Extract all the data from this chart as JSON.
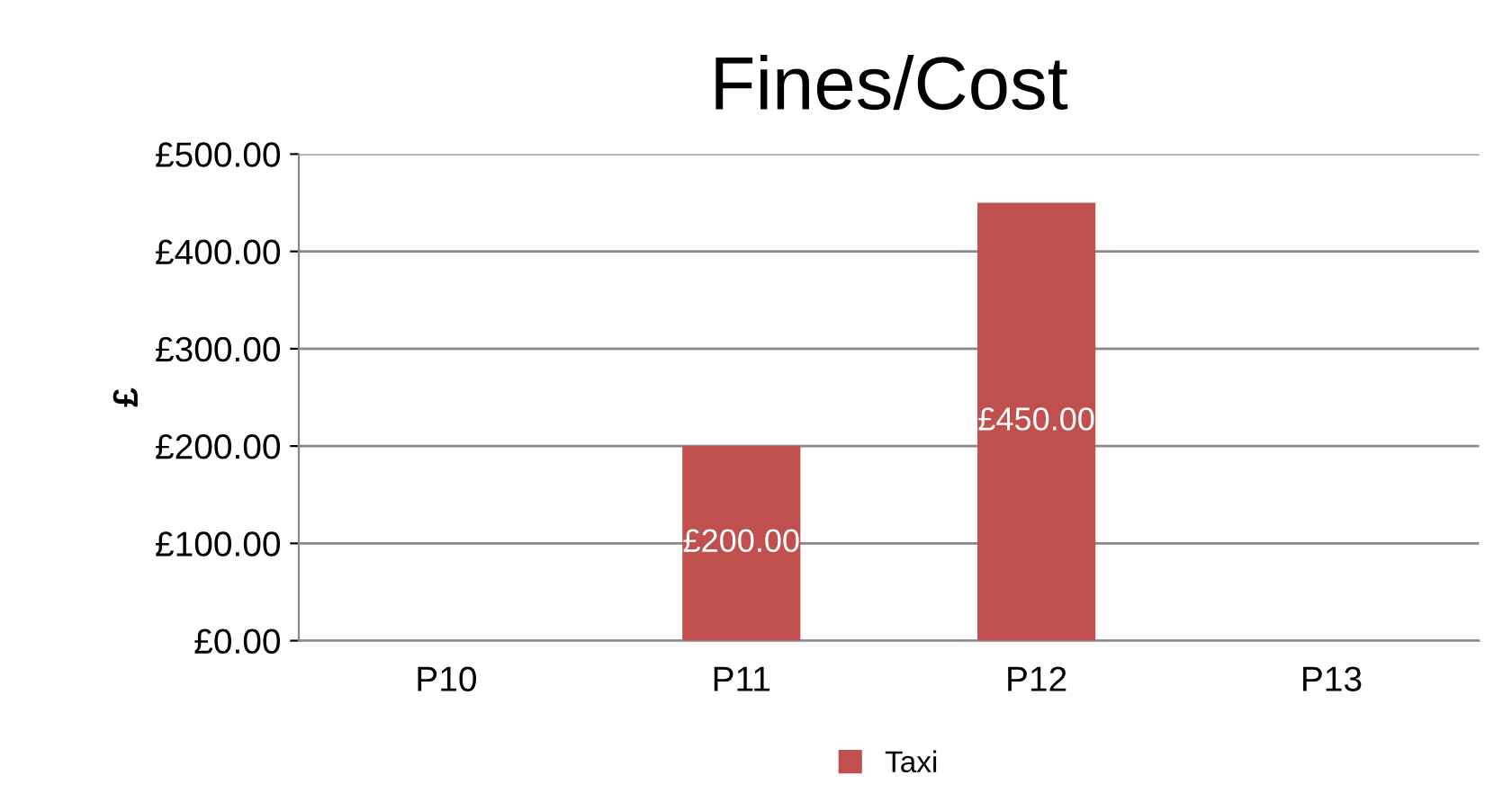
{
  "chart_data": {
    "type": "bar",
    "title": "Fines/Cost",
    "ylabel": "£",
    "categories": [
      "P10",
      "P11",
      "P12",
      "P13"
    ],
    "series": [
      {
        "name": "Taxi",
        "color": "#c0504d",
        "values": [
          0,
          200,
          450,
          0
        ],
        "value_labels": [
          null,
          "£200.00",
          "£450.00",
          null
        ]
      }
    ],
    "ylim": [
      0,
      500
    ],
    "yticks": [
      {
        "value": 0,
        "label": "£0.00"
      },
      {
        "value": 100,
        "label": "£100.00"
      },
      {
        "value": 200,
        "label": "£200.00"
      },
      {
        "value": 300,
        "label": "£300.00"
      },
      {
        "value": 400,
        "label": "£400.00"
      },
      {
        "value": 500,
        "label": "£500.00"
      }
    ],
    "grid": "y",
    "legend": "bottom"
  }
}
